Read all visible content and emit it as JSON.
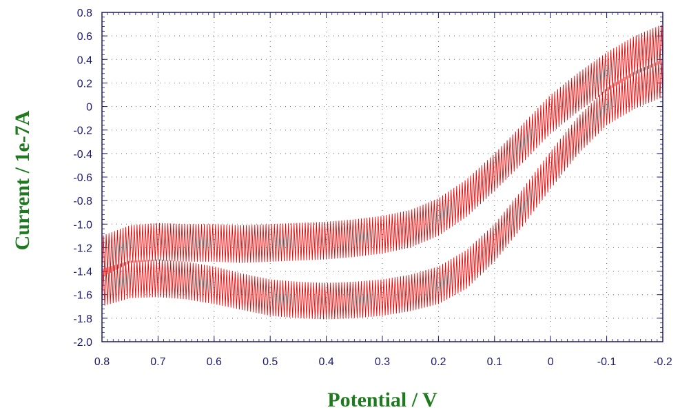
{
  "chart_data": {
    "type": "line",
    "title": "",
    "xlabel": "Potential / V",
    "ylabel": "Current / 1e-7A",
    "x_reversed": true,
    "xlim": [
      0.8,
      -0.2
    ],
    "ylim": [
      -2.0,
      0.8
    ],
    "x_ticks": [
      "0.8",
      "0.7",
      "0.6",
      "0.5",
      "0.4",
      "0.3",
      "0.2",
      "0.1",
      "0",
      "-0.1",
      "-0.2"
    ],
    "y_ticks": [
      "0.8",
      "0.6",
      "0.4",
      "0.2",
      "0",
      "-0.2",
      "-0.4",
      "-0.6",
      "-0.8",
      "-1.0",
      "-1.2",
      "-1.4",
      "-1.6",
      "-1.8",
      "-2.0"
    ],
    "grid": true,
    "legend": "none",
    "series": [
      {
        "color": "#ee0000",
        "x": [
          -0.2,
          -0.15,
          -0.1,
          -0.05,
          0,
          0.05,
          0.1,
          0.15,
          0.2,
          0.25,
          0.3,
          0.35,
          0.4,
          0.45,
          0.5,
          0.55,
          0.6,
          0.65,
          0.7,
          0.75,
          0.8
        ],
        "y_upper_min": [
          0.37,
          0.27,
          0.13,
          -0.04,
          -0.23,
          -0.48,
          -0.72,
          -0.94,
          -1.1,
          -1.2,
          -1.25,
          -1.28,
          -1.3,
          -1.31,
          -1.32,
          -1.33,
          -1.32,
          -1.32,
          -1.31,
          -1.33,
          -1.45
        ],
        "y_upper_max": [
          0.7,
          0.6,
          0.46,
          0.29,
          0.1,
          -0.15,
          -0.4,
          -0.62,
          -0.78,
          -0.88,
          -0.93,
          -0.96,
          -0.98,
          -0.99,
          -1.0,
          -1.01,
          -1.0,
          -1.0,
          -0.99,
          -1.01,
          -1.1
        ],
        "y_lower_min": [
          0.08,
          -0.02,
          -0.16,
          -0.4,
          -0.7,
          -1.02,
          -1.32,
          -1.55,
          -1.68,
          -1.74,
          -1.78,
          -1.8,
          -1.81,
          -1.8,
          -1.78,
          -1.73,
          -1.68,
          -1.64,
          -1.62,
          -1.63,
          -1.7
        ],
        "y_lower_max": [
          0.4,
          0.3,
          0.16,
          -0.08,
          -0.38,
          -0.7,
          -1.0,
          -1.22,
          -1.36,
          -1.43,
          -1.47,
          -1.49,
          -1.5,
          -1.49,
          -1.47,
          -1.42,
          -1.36,
          -1.32,
          -1.3,
          -1.31,
          -1.38
        ]
      }
    ]
  }
}
